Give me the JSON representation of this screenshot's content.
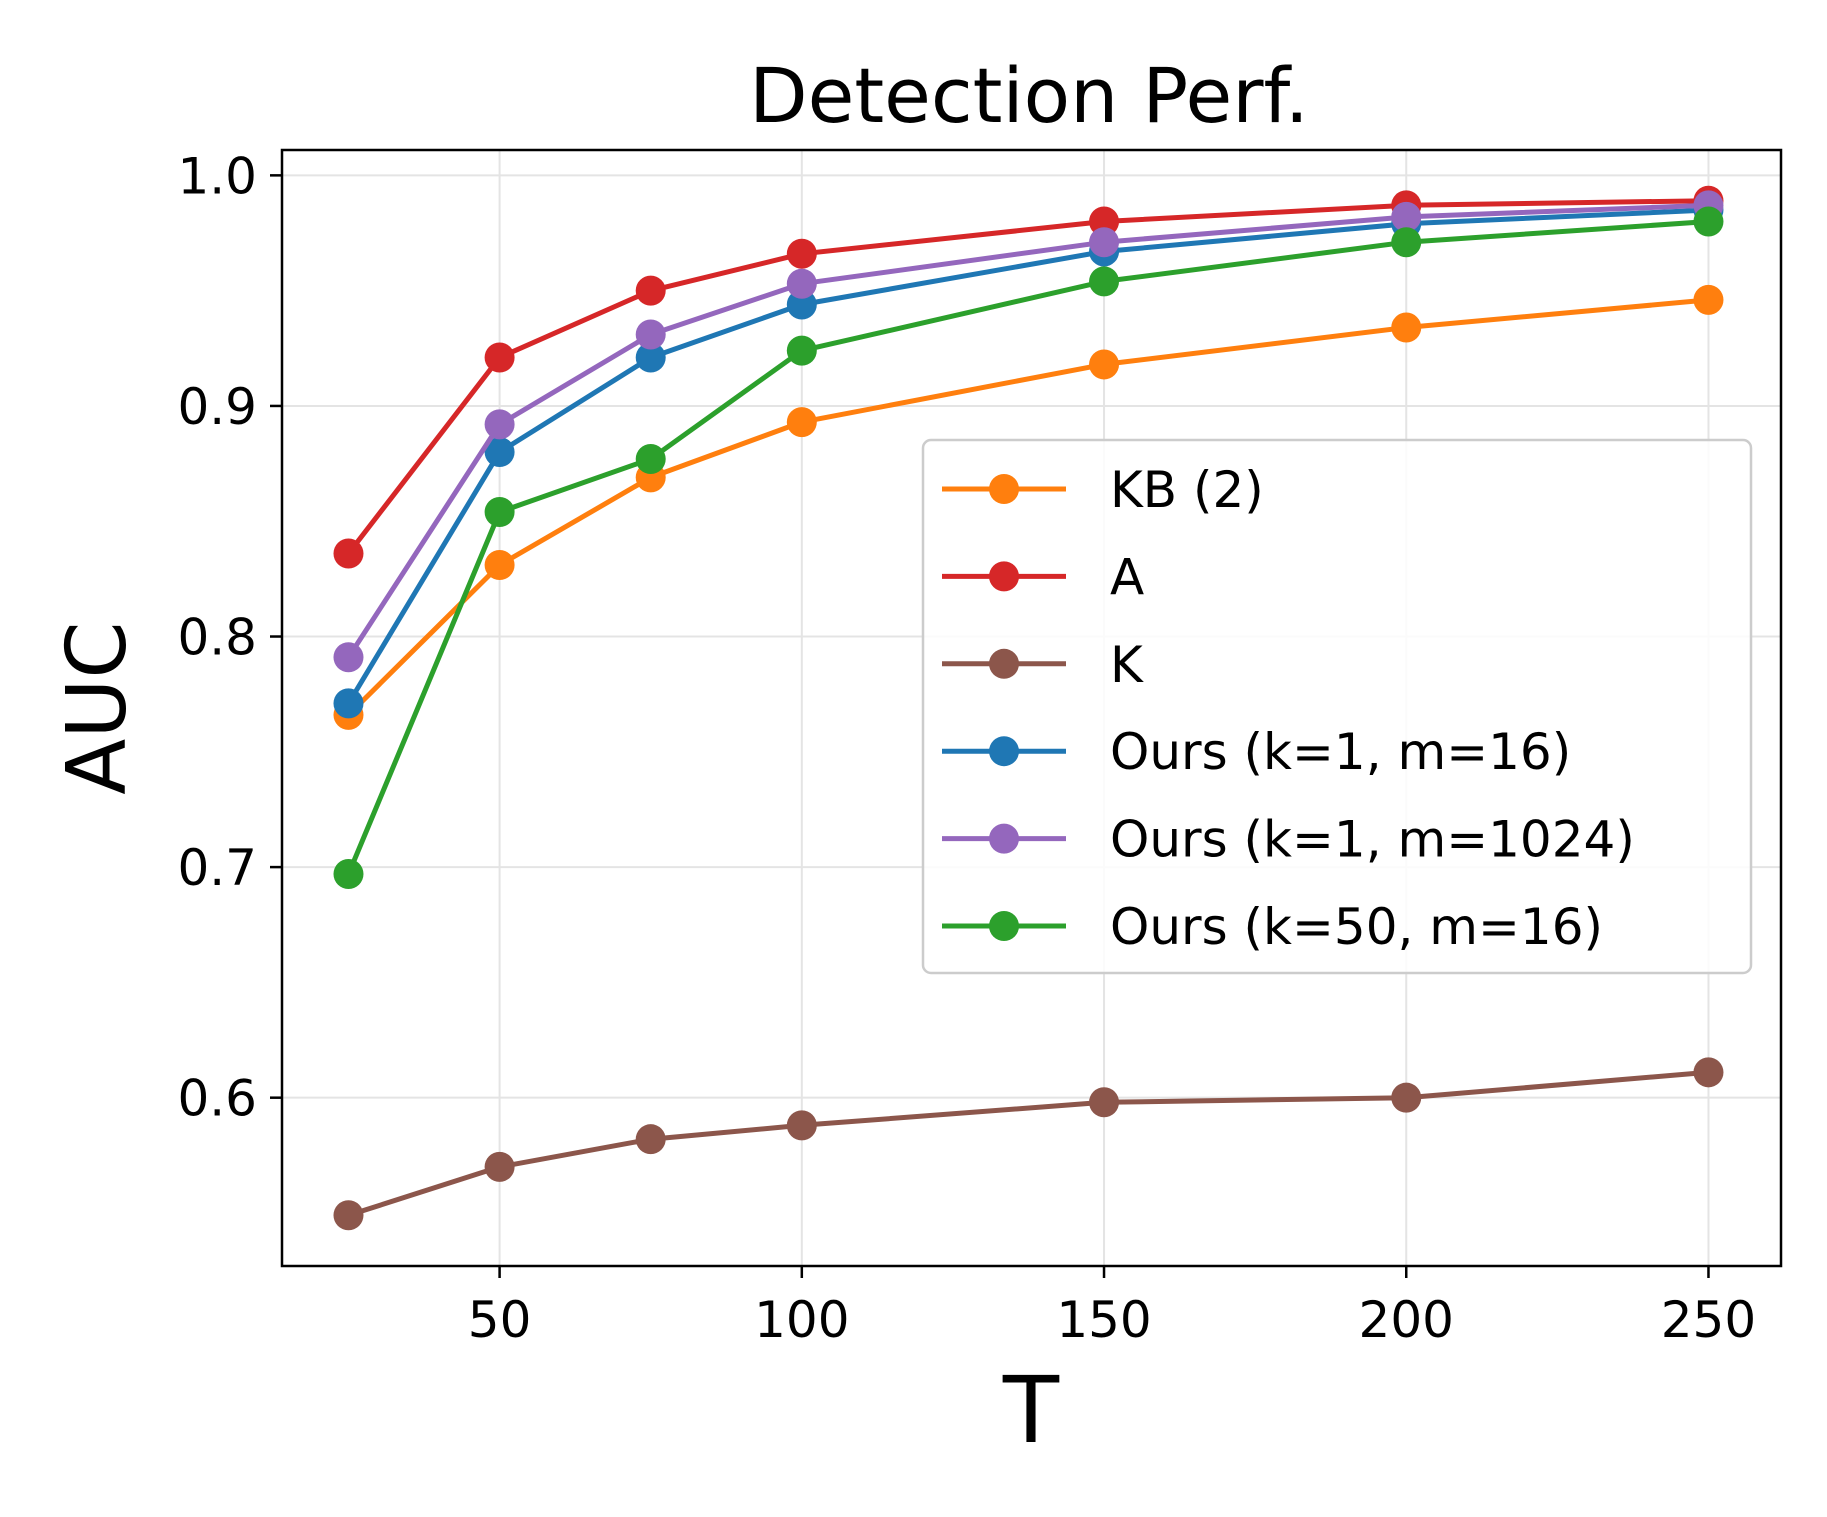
{
  "chart_data": {
    "type": "line",
    "title": "Detection Perf.",
    "xlabel": "T",
    "ylabel": "AUC",
    "xlim": [
      14,
      262
    ],
    "ylim": [
      0.527,
      1.011
    ],
    "xticks": [
      50,
      100,
      150,
      200,
      250
    ],
    "yticks": [
      0.6,
      0.7,
      0.8,
      0.9,
      1.0
    ],
    "xtick_labels": [
      "50",
      "100",
      "150",
      "200",
      "250"
    ],
    "ytick_labels": [
      "0.6",
      "0.7",
      "0.8",
      "0.9",
      "1.0"
    ],
    "grid": true,
    "legend_position": "center-right",
    "x": [
      25,
      50,
      75,
      100,
      150,
      200,
      250
    ],
    "series": [
      {
        "name": "KB (2)",
        "color": "#ff7f0e",
        "values": [
          0.766,
          0.831,
          0.869,
          0.893,
          0.918,
          0.934,
          0.946
        ]
      },
      {
        "name": "A",
        "color": "#d62728",
        "values": [
          0.836,
          0.921,
          0.95,
          0.966,
          0.98,
          0.987,
          0.989
        ]
      },
      {
        "name": "K",
        "color": "#8c564b",
        "values": [
          0.549,
          0.57,
          0.582,
          0.588,
          0.598,
          0.6,
          0.611
        ]
      },
      {
        "name": "Ours (k=1, m=16)",
        "color": "#1f77b4",
        "values": [
          0.771,
          0.88,
          0.921,
          0.944,
          0.967,
          0.979,
          0.985
        ]
      },
      {
        "name": "Ours (k=1, m=1024)",
        "color": "#9467bd",
        "values": [
          0.791,
          0.892,
          0.931,
          0.953,
          0.971,
          0.982,
          0.987
        ]
      },
      {
        "name": "Ours (k=50, m=16)",
        "color": "#2ca02c",
        "values": [
          0.697,
          0.854,
          0.877,
          0.924,
          0.954,
          0.971,
          0.98
        ]
      }
    ]
  }
}
